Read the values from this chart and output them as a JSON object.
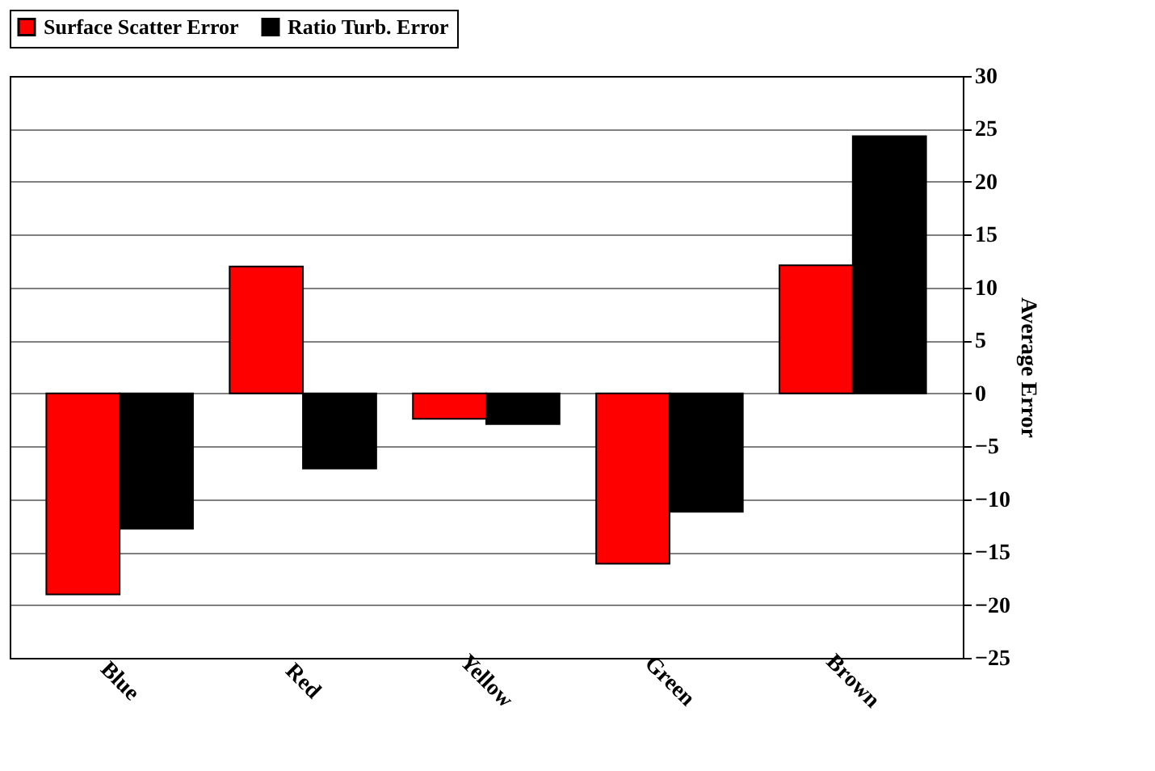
{
  "chart_data": {
    "type": "bar",
    "categories": [
      "Blue",
      "Red",
      "Yellow",
      "Green",
      "Brown"
    ],
    "series": [
      {
        "name": "Surface Scatter Error",
        "color": "#ff0000",
        "values": [
          -19.0,
          12.0,
          -2.4,
          -16.1,
          12.1
        ]
      },
      {
        "name": "Ratio Turb. Error",
        "color": "#000000",
        "values": [
          -12.8,
          -7.1,
          -2.9,
          -11.2,
          24.3
        ]
      }
    ],
    "ylabel": "Average Error",
    "ylim": [
      -25,
      30
    ],
    "yticks": [
      -25,
      -20,
      -15,
      -10,
      -5,
      0,
      5,
      10,
      15,
      20,
      25,
      30
    ],
    "grid": "y",
    "legend": "top"
  }
}
